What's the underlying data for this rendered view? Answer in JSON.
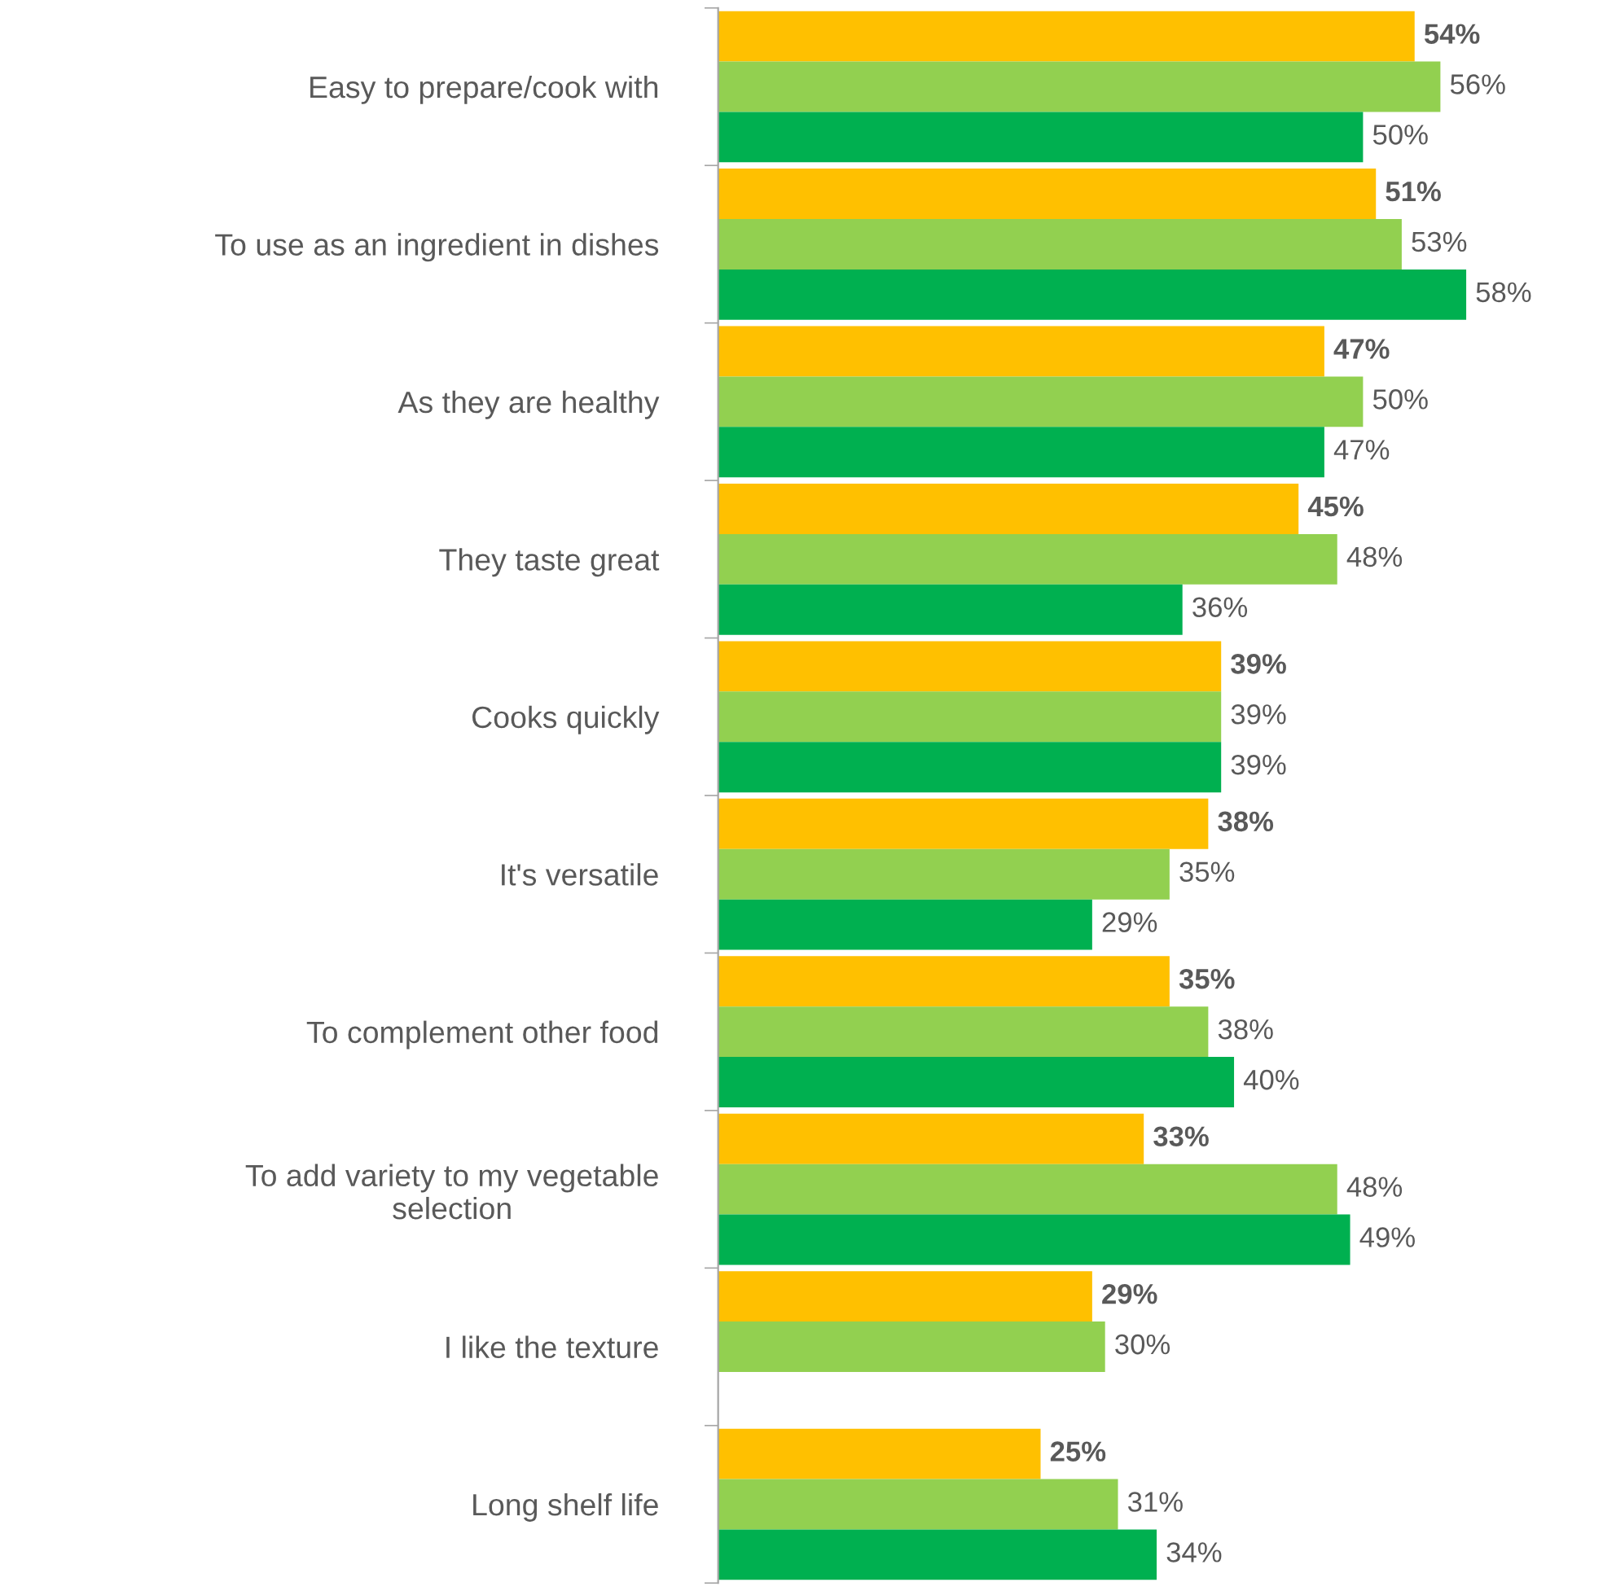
{
  "chart_data": {
    "type": "bar",
    "orientation": "horizontal",
    "categories": [
      "Easy to prepare/cook with",
      "To use as an ingredient in dishes",
      "As they are healthy",
      "They taste great",
      "Cooks quickly",
      "It's versatile",
      "To complement other food",
      "To add variety to my vegetable\nselection",
      "I like the texture",
      "Long shelf life"
    ],
    "series": [
      {
        "color": "#ffc000",
        "values": [
          54,
          51,
          47,
          45,
          39,
          38,
          35,
          33,
          29,
          25
        ],
        "value_labels": [
          "54%",
          "51%",
          "47%",
          "45%",
          "39%",
          "38%",
          "35%",
          "33%",
          "29%",
          "25%"
        ]
      },
      {
        "color": "#92d050",
        "values": [
          56,
          53,
          50,
          48,
          39,
          35,
          38,
          48,
          30,
          31
        ],
        "value_labels": [
          "56%",
          "53%",
          "50%",
          "48%",
          "39%",
          "35%",
          "38%",
          "48%",
          "30%",
          "31%"
        ]
      },
      {
        "color": "#00b050",
        "values": [
          50,
          58,
          47,
          36,
          39,
          29,
          40,
          49,
          null,
          34
        ],
        "value_labels": [
          "50%",
          "58%",
          "47%",
          "36%",
          "39%",
          "29%",
          "40%",
          "49%",
          null,
          "34%"
        ]
      }
    ],
    "tick_labels": "y"
  }
}
